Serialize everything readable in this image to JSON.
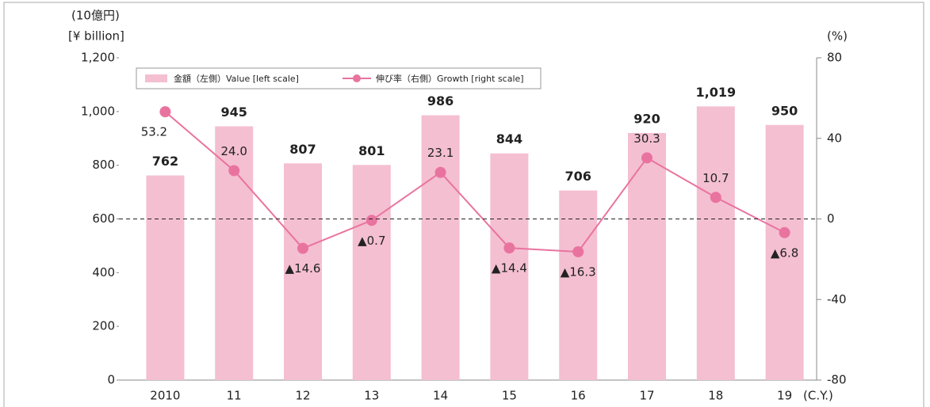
{
  "chart_data": {
    "type": "bar",
    "y_label": [
      "(10億円)",
      "[¥ billion]"
    ],
    "y2_label": "(%)",
    "x_label": "(C.Y.)",
    "categories": [
      "2010",
      "11",
      "12",
      "13",
      "14",
      "15",
      "16",
      "17",
      "18",
      "19"
    ],
    "series": [
      {
        "name": "金額（左側）Value [left scale]",
        "type": "bar",
        "color": "#f4bfd1",
        "values": [
          762,
          945,
          807,
          801,
          986,
          844,
          706,
          920,
          1019,
          950
        ],
        "value_labels": [
          "762",
          "945",
          "807",
          "801",
          "986",
          "844",
          "706",
          "920",
          "1,019",
          "950"
        ]
      },
      {
        "name": "伸び率（右側）Growth [right scale]",
        "type": "line",
        "axis": "y2",
        "color": "#e9739f",
        "values": [
          53.2,
          24.0,
          -14.6,
          -0.7,
          23.1,
          -14.4,
          -16.3,
          30.3,
          10.7,
          -6.8
        ],
        "value_labels": [
          "53.2",
          "24.0",
          "▲14.6",
          "▲0.7",
          "23.1",
          "▲14.4",
          "▲16.3",
          "30.3",
          "10.7",
          "▲6.8"
        ]
      }
    ],
    "ylim": [
      0,
      1200
    ],
    "yticks": [
      0,
      200,
      400,
      600,
      800,
      {
        "value": 1000,
        "label": "1,000"
      },
      {
        "value": 1200,
        "label": "1,200"
      }
    ],
    "y2lim": [
      -80,
      80
    ],
    "y2ticks": [
      -80,
      -40,
      0,
      40,
      80
    ],
    "zero_line": true,
    "legend": "top-left"
  }
}
